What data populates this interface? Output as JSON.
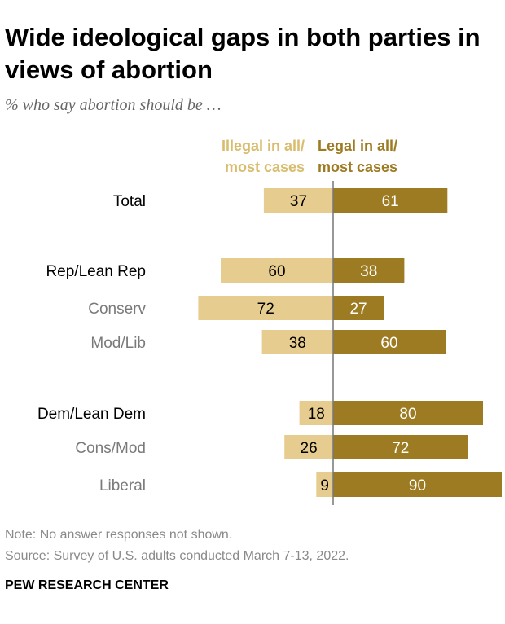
{
  "header": {
    "title": "Wide ideological gaps in both parties in views of abortion",
    "subtitle": "% who say abortion should be …"
  },
  "legend": {
    "illegal_line1": "Illegal in all/",
    "illegal_line2": "most cases",
    "legal_line1": "Legal in all/",
    "legal_line2": "most cases"
  },
  "colors": {
    "illegal": "#E6CC8E",
    "legal": "#9D7B22",
    "illegal_text": "#D8BD6E",
    "legal_text": "#9D7B22",
    "axis": "#777777",
    "group_label": "#000000",
    "sub_label": "#7a7a7a"
  },
  "chart_data": {
    "type": "bar",
    "orientation": "diverging-horizontal",
    "categories": [
      "Total",
      "Rep/Lean Rep",
      "Conserv",
      "Mod/Lib",
      "Dem/Lean Dem",
      "Cons/Mod",
      "Liberal"
    ],
    "category_level": [
      "group",
      "group",
      "sub",
      "sub",
      "group",
      "sub",
      "sub"
    ],
    "series": [
      {
        "name": "Illegal in all/ most cases",
        "values": [
          37,
          60,
          72,
          38,
          18,
          26,
          9
        ]
      },
      {
        "name": "Legal in all/ most cases",
        "values": [
          61,
          38,
          27,
          60,
          80,
          72,
          90
        ]
      }
    ],
    "title": "Wide ideological gaps in both parties in views of abortion",
    "subtitle": "% who say abortion should be …"
  },
  "footer": {
    "note": "Note: No answer responses not shown.",
    "source": "Source: Survey of U.S. adults conducted March 7-13, 2022.",
    "brand": "PEW RESEARCH CENTER"
  }
}
